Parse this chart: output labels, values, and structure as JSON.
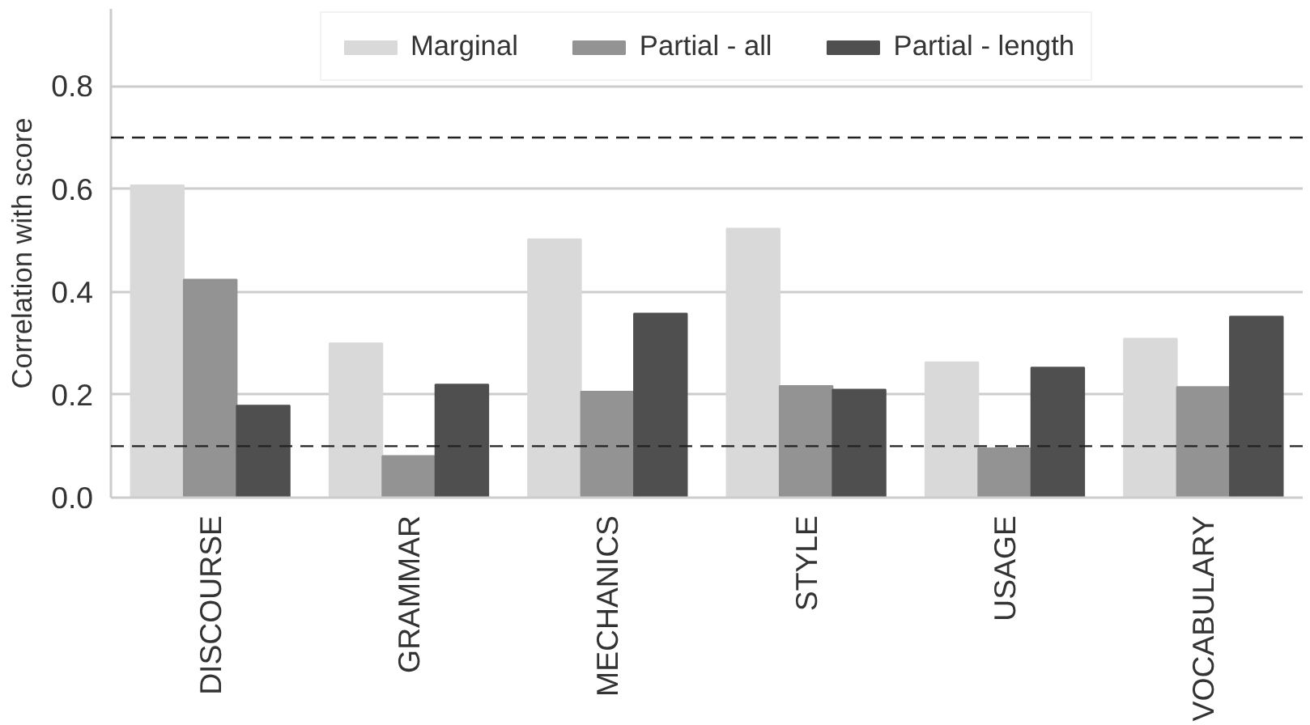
{
  "chart_data": {
    "type": "bar",
    "ylabel": "Correlation with score",
    "categories": [
      "DISCOURSE",
      "GRAMMAR",
      "MECHANICS",
      "STYLE",
      "USAGE",
      "VOCABULARY"
    ],
    "series": [
      {
        "name": "Marginal",
        "color": "#d9d9d9",
        "values": [
          0.607,
          0.3,
          0.502,
          0.523,
          0.263,
          0.309
        ]
      },
      {
        "name": "Partial - all",
        "color": "#939393",
        "values": [
          0.424,
          0.081,
          0.206,
          0.217,
          0.096,
          0.215
        ]
      },
      {
        "name": "Partial - length",
        "color": "#4f4f4f",
        "values": [
          0.179,
          0.22,
          0.358,
          0.21,
          0.253,
          0.352
        ]
      }
    ],
    "ylim": [
      0,
      0.95
    ],
    "yticks": [
      {
        "value": 0,
        "label": "0.0"
      },
      {
        "value": 0.2,
        "label": "0.2"
      },
      {
        "value": 0.4,
        "label": "0.4"
      },
      {
        "value": 0.6,
        "label": "0.6"
      },
      {
        "value": 0.8,
        "label": "0.8"
      }
    ],
    "grid": "y",
    "legend": "top",
    "ref_lines": [
      {
        "axis": "y",
        "value": 0.7,
        "color": "#222222",
        "line_style": "dashed"
      },
      {
        "axis": "y",
        "value": 0.1,
        "color": "#222222",
        "line_style": "dashed"
      }
    ]
  }
}
